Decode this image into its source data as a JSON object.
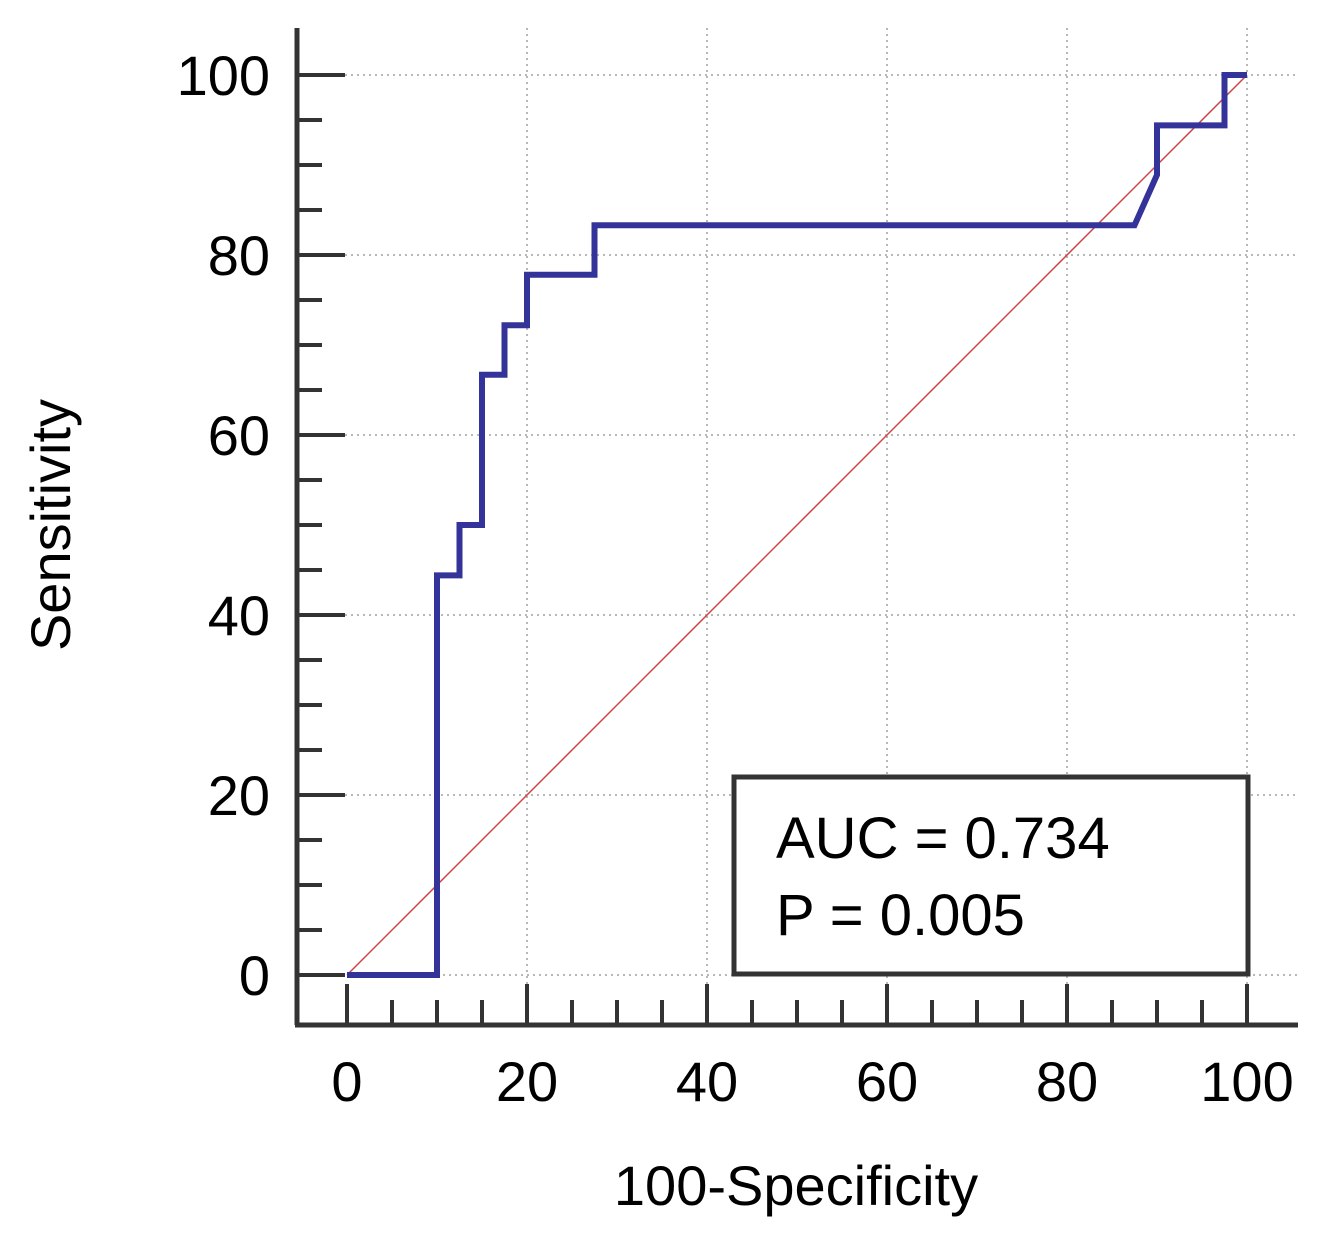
{
  "chart_data": {
    "type": "line",
    "title": "",
    "xlabel": "100-Specificity",
    "ylabel": "Sensitivity",
    "xlim": [
      0,
      100
    ],
    "ylim": [
      0,
      100
    ],
    "x_ticks": [
      0,
      20,
      40,
      60,
      80,
      100
    ],
    "y_ticks": [
      0,
      20,
      40,
      60,
      80,
      100
    ],
    "x_ticks_minor_step": 5,
    "y_ticks_minor_step": 5,
    "grid": true,
    "series": [
      {
        "name": "ROC curve",
        "color": "#333399",
        "x": [
          0,
          10,
          10,
          12.5,
          12.5,
          15,
          15,
          17.5,
          17.5,
          20,
          20,
          27.5,
          27.5,
          87.5,
          90,
          90,
          97.5,
          97.5,
          100
        ],
        "y": [
          0,
          0,
          44.4,
          44.4,
          50,
          50,
          66.7,
          66.7,
          72.2,
          72.2,
          77.8,
          77.8,
          83.3,
          83.3,
          88.9,
          94.4,
          94.4,
          100,
          100
        ]
      },
      {
        "name": "Reference line",
        "color": "#cc4444",
        "x": [
          0,
          100
        ],
        "y": [
          0,
          100
        ]
      }
    ],
    "annotations": {
      "auc": "AUC = 0.734",
      "p": "P = 0.005"
    }
  }
}
